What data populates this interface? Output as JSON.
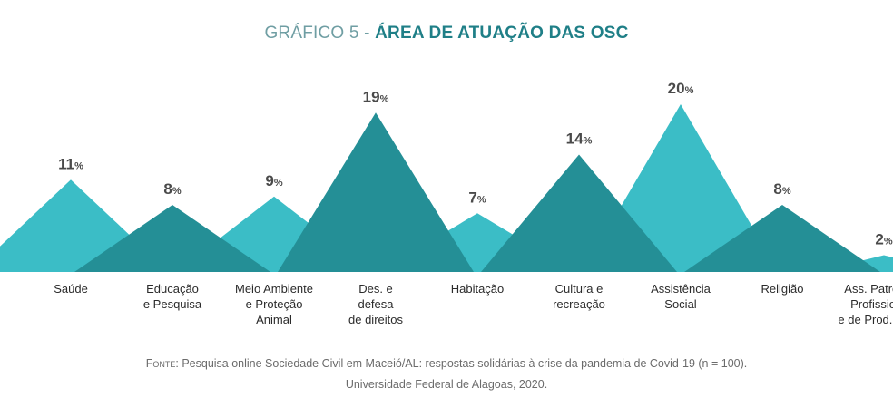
{
  "chart_data": {
    "type": "area",
    "title_prefix": "GRÁFICO 5 -",
    "title": "ÁREA DE ATUAÇÃO DAS OSC",
    "unit_suffix": "%",
    "categories": [
      [
        "Saúde"
      ],
      [
        "Educação",
        "e Pesquisa"
      ],
      [
        "Meio Ambiente",
        "e Proteção",
        "Animal"
      ],
      [
        "Des. e",
        "defesa",
        "de direitos"
      ],
      [
        "Habitação"
      ],
      [
        "Cultura e",
        "recreação"
      ],
      [
        "Assistência",
        "Social"
      ],
      [
        "Religião"
      ],
      [
        "Ass. Patronais,",
        "Profissionais",
        "e de Prod. Rurais"
      ]
    ],
    "values": [
      11,
      8,
      9,
      19,
      7,
      14,
      20,
      8,
      2
    ],
    "colors": [
      "#3bbdc6",
      "#248f96",
      "#3bbdc6",
      "#248f96",
      "#3bbdc6",
      "#248f96",
      "#3bbdc6",
      "#248f96",
      "#3bbdc6"
    ],
    "ylim": [
      0,
      20
    ]
  },
  "source": {
    "label": "Fonte:",
    "text": "Pesquisa online Sociedade Civil em Maceió/AL: respostas solidárias à crise da pandemia de Covid-19 (n = 100).",
    "line2": "Universidade Federal de Alagoas, 2020."
  }
}
